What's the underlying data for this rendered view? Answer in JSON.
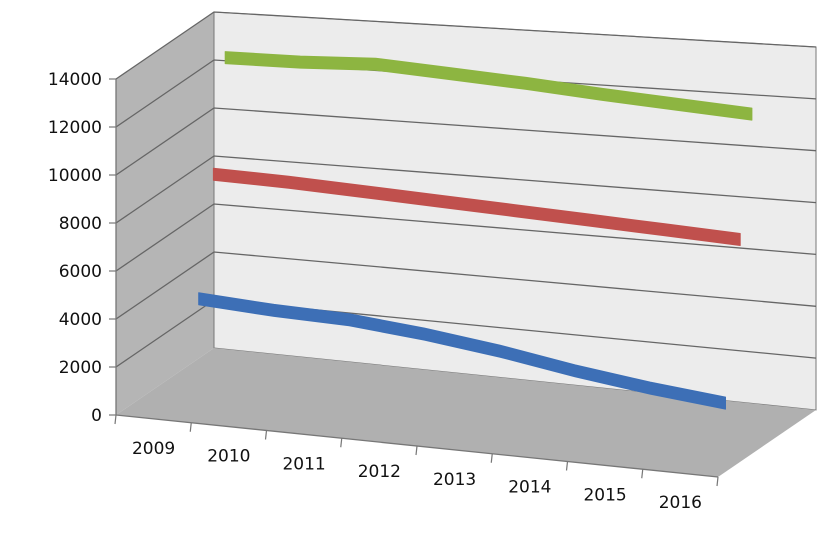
{
  "chart_data": {
    "type": "line",
    "style": "3d-ribbon",
    "grid": true,
    "legend": "none",
    "ylim": [
      0,
      14000
    ],
    "y_ticks": [
      "0",
      "2000",
      "4000",
      "6000",
      "8000",
      "10000",
      "12000",
      "14000"
    ],
    "categories": [
      "2009",
      "2010",
      "2011",
      "2012",
      "2013",
      "2014",
      "2015",
      "2016"
    ],
    "series": [
      {
        "color": "#3d6fb6",
        "values": [
          3950,
          3750,
          3650,
          3350,
          2950,
          2450,
          2050,
          1750
        ]
      },
      {
        "color": "#c0504d",
        "values": [
          8700,
          8600,
          8450,
          8300,
          8150,
          8000,
          7850,
          7700
        ]
      },
      {
        "color": "#8db541",
        "values": [
          13200,
          13200,
          13300,
          13100,
          12900,
          12650,
          12450,
          12250
        ]
      }
    ],
    "colors": {
      "wall": "#ececec",
      "side_wall": "#b5b5b5",
      "floor": "#b0b0b0",
      "grid": "#666666"
    }
  }
}
